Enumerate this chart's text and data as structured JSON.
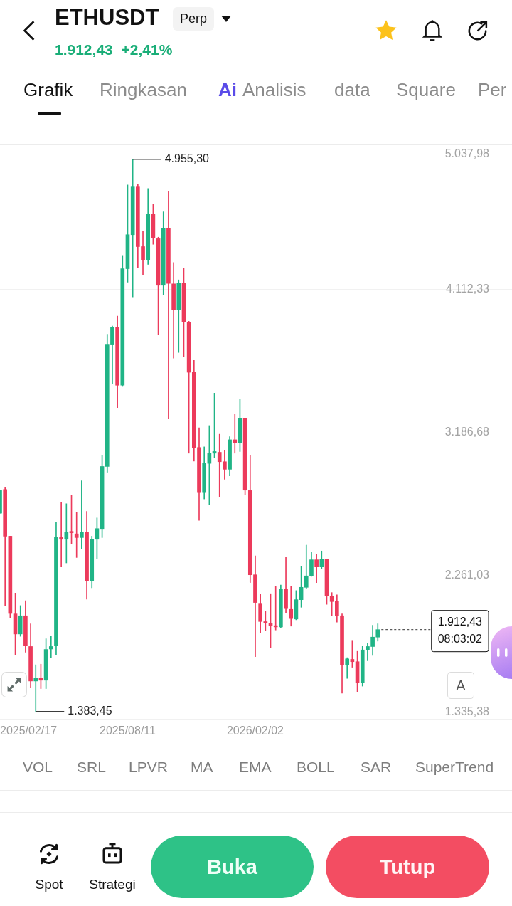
{
  "chart_data": {
    "type": "candlestick",
    "title": "ETHUSDT",
    "subtitle": "1.912,43 +2,41%",
    "x": [
      "2025-02-17",
      "2025-02-24",
      "2025-03-03",
      "2025-03-10",
      "2025-03-17",
      "2025-03-24",
      "2025-03-31",
      "2025-04-07",
      "2025-04-14",
      "2025-04-21",
      "2025-04-28",
      "2025-05-05",
      "2025-05-12",
      "2025-05-19",
      "2025-05-26",
      "2025-06-02",
      "2025-06-09",
      "2025-06-16",
      "2025-06-23",
      "2025-06-30",
      "2025-07-07",
      "2025-07-14",
      "2025-07-21",
      "2025-07-28",
      "2025-08-04",
      "2025-08-11",
      "2025-08-18",
      "2025-08-25",
      "2025-09-01",
      "2025-09-08",
      "2025-09-15",
      "2025-09-22",
      "2025-09-29",
      "2025-10-06",
      "2025-10-13",
      "2025-10-20",
      "2025-10-27",
      "2025-11-03",
      "2025-11-10",
      "2025-11-17",
      "2025-11-24",
      "2025-12-01",
      "2025-12-08",
      "2025-12-15",
      "2025-12-22",
      "2025-12-29",
      "2026-01-05",
      "2026-01-12",
      "2026-01-19",
      "2026-01-26",
      "2026-02-02",
      "2026-02-09",
      "2026-02-16",
      "2026-02-23",
      "2026-03-02",
      "2026-03-09",
      "2026-03-16",
      "2026-03-23",
      "2026-03-30",
      "2026-04-06",
      "2026-04-13",
      "2026-04-20",
      "2026-04-27",
      "2026-05-04",
      "2026-05-11",
      "2026-05-18",
      "2026-05-25",
      "2026-06-01",
      "2026-06-08",
      "2026-06-15",
      "2026-06-22",
      "2026-06-29",
      "2026-07-06",
      "2026-07-13",
      "2026-07-20"
    ],
    "ohlc": [
      [
        2666,
        2812,
        2666,
        2812
      ],
      [
        2819,
        2835,
        2068,
        2517
      ],
      [
        2517,
        2517,
        1987,
        2017
      ],
      [
        2014,
        2149,
        1750,
        1884
      ],
      [
        1884,
        2068,
        1869,
        2002
      ],
      [
        2002,
        2099,
        1766,
        1807
      ],
      [
        1803,
        1950,
        1537,
        1580
      ],
      [
        1580,
        1685,
        1383.45,
        1597
      ],
      [
        1597,
        1689,
        1531,
        1585
      ],
      [
        1585,
        1853,
        1531,
        1784
      ],
      [
        1787,
        1869,
        1731,
        1803
      ],
      [
        1807,
        2605,
        1750,
        2508
      ],
      [
        2508,
        2735,
        2318,
        2497
      ],
      [
        2497,
        2727,
        2344,
        2543
      ],
      [
        2548,
        2784,
        2467,
        2539
      ],
      [
        2532,
        2674,
        2379,
        2508
      ],
      [
        2508,
        2876,
        2436,
        2543
      ],
      [
        2543,
        2677,
        2109,
        2226
      ],
      [
        2226,
        2517,
        2183,
        2497
      ],
      [
        2497,
        2635,
        2370,
        2566
      ],
      [
        2566,
        3038,
        2508,
        2968
      ],
      [
        2968,
        3824,
        2931,
        3755
      ],
      [
        3755,
        3877,
        3502,
        3870
      ],
      [
        3870,
        3942,
        3349,
        3494
      ],
      [
        3494,
        4334,
        3486,
        4248
      ],
      [
        4248,
        4790,
        4161,
        4468
      ],
      [
        4468,
        4955.3,
        4061,
        4777
      ],
      [
        4777,
        4797,
        4256,
        4391
      ],
      [
        4391,
        4491,
        4207,
        4304
      ],
      [
        4304,
        4767,
        4276,
        4603
      ],
      [
        4603,
        4667,
        4406,
        4448
      ],
      [
        4442,
        4452,
        3819,
        4141
      ],
      [
        4141,
        4616,
        4080,
        4509
      ],
      [
        4509,
        4751,
        3276,
        4153
      ],
      [
        4150,
        4288,
        3670,
        3982
      ],
      [
        3982,
        4176,
        3706,
        4156
      ],
      [
        4156,
        4250,
        3678,
        3905
      ],
      [
        3903,
        3908,
        3054,
        3578
      ],
      [
        3578,
        3655,
        3003,
        3091
      ],
      [
        3091,
        3218,
        2620,
        2799
      ],
      [
        2799,
        3095,
        2758,
        2988
      ],
      [
        2988,
        3233,
        2720,
        3054
      ],
      [
        3054,
        3443,
        3026,
        3065
      ],
      [
        3060,
        3177,
        2773,
        2999
      ],
      [
        2999,
        3075,
        2885,
        2950
      ],
      [
        2950,
        3161,
        2907,
        3141
      ],
      [
        3141,
        3305,
        3054,
        3121
      ],
      [
        3121,
        3402,
        3065,
        3279
      ],
      [
        3279,
        3279,
        2784,
        2815
      ],
      [
        2812,
        3042,
        2217,
        2267
      ],
      [
        2267,
        2390,
        1738,
        2088
      ],
      [
        2083,
        2140,
        1892,
        1965
      ],
      [
        1964,
        2033,
        1904,
        1956
      ],
      [
        1953,
        2145,
        1797,
        1938
      ],
      [
        1938,
        2195,
        1910,
        1930
      ],
      [
        1930,
        2201,
        1922,
        2175
      ],
      [
        2175,
        2382,
        2022,
        2053
      ],
      [
        2048,
        2195,
        1935,
        1984
      ],
      [
        1981,
        2165,
        1976,
        2106
      ],
      [
        2106,
        2324,
        2057,
        2186
      ],
      [
        2186,
        2459,
        2175,
        2260
      ],
      [
        2260,
        2416,
        2257,
        2364
      ],
      [
        2364,
        2401,
        2217,
        2321
      ],
      [
        2321,
        2421,
        2306,
        2367
      ],
      [
        2367,
        2367,
        2076,
        2129
      ],
      [
        2129,
        2152,
        2002,
        2094
      ],
      [
        2094,
        2137,
        1961,
        2002
      ],
      [
        2002,
        2014,
        1501,
        1685
      ],
      [
        1685,
        1731,
        1597,
        1723
      ],
      [
        1720,
        1843,
        1669,
        1705
      ],
      [
        1705,
        1772,
        1508,
        1570
      ],
      [
        1570,
        1807,
        1547,
        1781
      ],
      [
        1781,
        1827,
        1711,
        1803
      ],
      [
        1803,
        1941,
        1746,
        1864
      ],
      [
        1864,
        1950,
        1838,
        1912.43
      ]
    ],
    "colors": [
      "#20b486",
      "#ec3a5b",
      "#ec3a5b",
      "#ec3a5b",
      "#20b486",
      "#ec3a5b",
      "#ec3a5b",
      "#20b486",
      "#ec3a5b",
      "#20b486",
      "#20b486",
      "#20b486",
      "#ec3a5b",
      "#20b486",
      "#ec3a5b",
      "#ec3a5b",
      "#20b486",
      "#ec3a5b",
      "#20b486",
      "#20b486",
      "#20b486",
      "#20b486",
      "#20b486",
      "#ec3a5b",
      "#20b486",
      "#20b486",
      "#20b486",
      "#ec3a5b",
      "#ec3a5b",
      "#20b486",
      "#ec3a5b",
      "#ec3a5b",
      "#20b486",
      "#ec3a5b",
      "#ec3a5b",
      "#20b486",
      "#ec3a5b",
      "#ec3a5b",
      "#ec3a5b",
      "#ec3a5b",
      "#20b486",
      "#20b486",
      "#20b486",
      "#ec3a5b",
      "#ec3a5b",
      "#20b486",
      "#ec3a5b",
      "#20b486",
      "#ec3a5b",
      "#ec3a5b",
      "#ec3a5b",
      "#ec3a5b",
      "#ec3a5b",
      "#ec3a5b",
      "#ec3a5b",
      "#20b486",
      "#ec3a5b",
      "#ec3a5b",
      "#20b486",
      "#20b486",
      "#20b486",
      "#20b486",
      "#ec3a5b",
      "#20b486",
      "#ec3a5b",
      "#ec3a5b",
      "#ec3a5b",
      "#ec3a5b",
      "#20b486",
      "#ec3a5b",
      "#ec3a5b",
      "#20b486",
      "#20b486",
      "#20b486",
      "#20b486"
    ],
    "xlim": [
      "2025-02-17",
      "2027-01-20"
    ],
    "xticks": [
      {
        "value": "2025-02-17",
        "label": "2025/02/17"
      },
      {
        "value": "2025-08-11",
        "label": "2025/08/11"
      },
      {
        "value": "2026-02-02",
        "label": "2026/02/02"
      }
    ],
    "ylim": [
      1335.38,
      5037.98
    ],
    "yticks": [
      {
        "value": 5037.98,
        "label": "5.037,98"
      },
      {
        "value": 4112.33,
        "label": "4.112,33"
      },
      {
        "value": 3186.68,
        "label": "3.186,68"
      },
      {
        "value": 2261.03,
        "label": "2.261,03"
      },
      {
        "value": 1335.38,
        "label": "1.335,38"
      }
    ],
    "grid": "y",
    "ref_lines": [
      {
        "axis": "y",
        "value": 1912.43,
        "label": "1.912,43\n08:03:02",
        "line_style": "dashed",
        "color": "#333333"
      }
    ],
    "annotations": [
      "Perp",
      "Grafik",
      "Ringkasan",
      "Ai",
      "Analisis",
      "data",
      "Square",
      "Per",
      {
        "text": "4.955,30",
        "x": "2025-08-18",
        "y": 4955.3
      },
      {
        "text": "1.383,45",
        "x": "2025-04-07",
        "y": 1383.45
      },
      "A",
      "VOL",
      "SRL",
      "LPVR",
      "MA",
      "EMA",
      "BOLL",
      "SAR",
      "SuperTrend",
      "Spot",
      "Strategi",
      "Buka",
      "Tutup"
    ]
  }
}
